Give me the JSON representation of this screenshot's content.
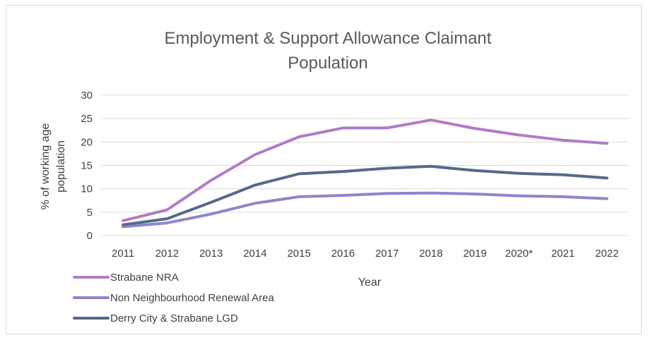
{
  "chart_data": {
    "type": "line",
    "title_lines": [
      "Employment & Support Allowance Claimant",
      "Population"
    ],
    "xlabel": "Year",
    "ylabel_lines": [
      "% of working age",
      "population"
    ],
    "categories": [
      "2011",
      "2012",
      "2013",
      "2014",
      "2015",
      "2016",
      "2017",
      "2018",
      "2019",
      "2020*",
      "2021",
      "2022"
    ],
    "ylim": [
      0,
      30
    ],
    "yticks": [
      "0",
      "5",
      "10",
      "15",
      "20",
      "25",
      "30"
    ],
    "grid": true,
    "legend_position": "bottom-left",
    "series": [
      {
        "name": "Strabane NRA",
        "color": "#b07cc6",
        "values": [
          3.2,
          5.5,
          11.8,
          17.3,
          21.1,
          23.0,
          23.0,
          24.7,
          22.9,
          21.5,
          20.4,
          19.7
        ]
      },
      {
        "name": "Non Neighbourhood Renewal Area",
        "color": "#8e86cc",
        "values": [
          1.9,
          2.7,
          4.6,
          6.9,
          8.3,
          8.6,
          9.0,
          9.1,
          8.9,
          8.5,
          8.3,
          7.9
        ]
      },
      {
        "name": "Derry City & Strabane LGD",
        "color": "#546a8a",
        "values": [
          2.3,
          3.6,
          7.1,
          10.8,
          13.2,
          13.7,
          14.4,
          14.8,
          13.9,
          13.3,
          13.0,
          12.3
        ]
      }
    ]
  }
}
